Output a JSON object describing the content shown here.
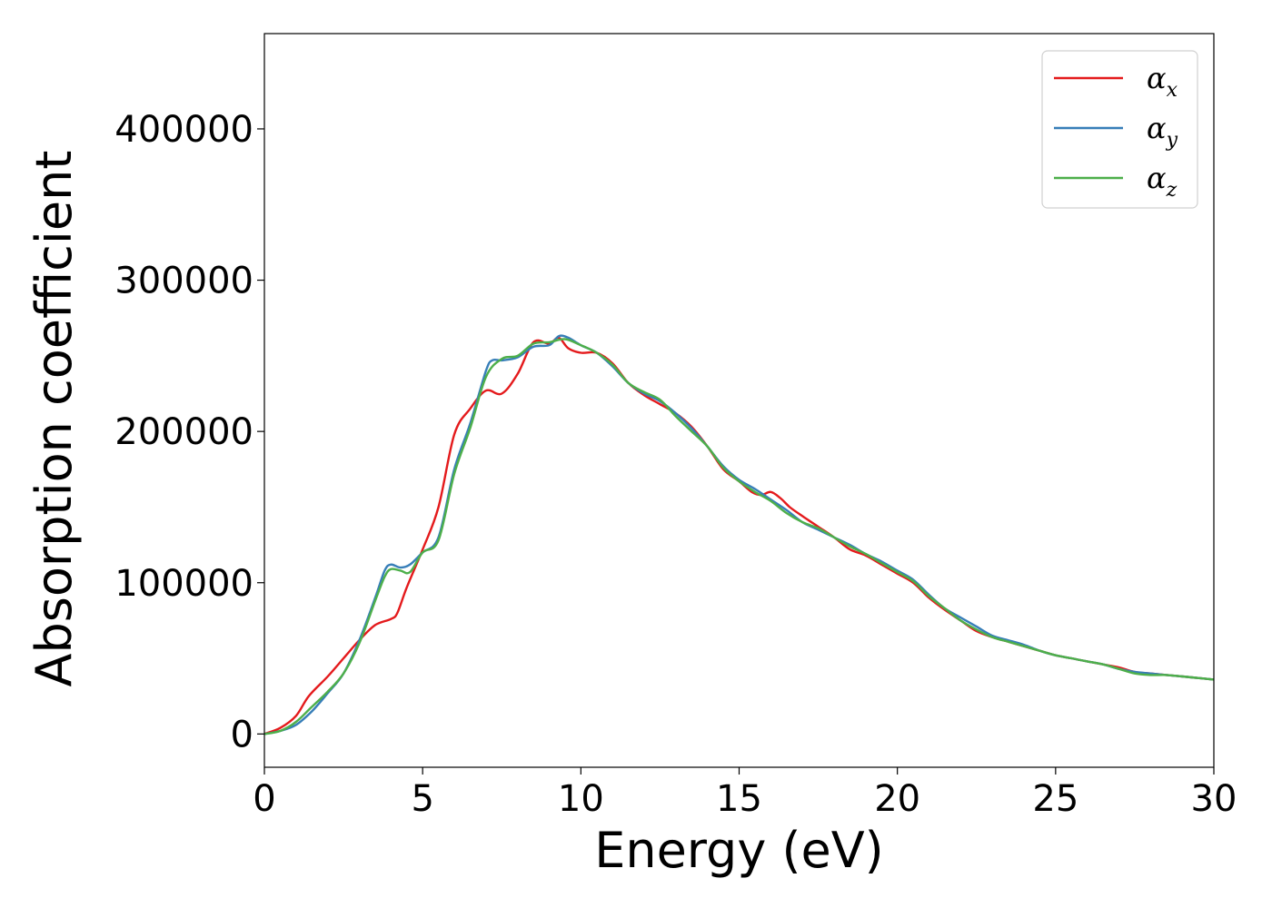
{
  "chart_data": {
    "type": "line",
    "title": "",
    "xlabel": "Energy (eV)",
    "ylabel": "Absorption coefficient",
    "xlim": [
      0,
      30
    ],
    "ylim": [
      -22000,
      463000
    ],
    "xticks": [
      0,
      5,
      10,
      15,
      20,
      25,
      30
    ],
    "yticks": [
      0,
      100000,
      200000,
      300000,
      400000
    ],
    "grid": false,
    "legend_position": "top-right",
    "series": [
      {
        "name": "α",
        "subscript": "x",
        "color": "#e41a1c",
        "x": [
          0,
          0.5,
          1.0,
          1.4,
          2.0,
          2.5,
          3.0,
          3.5,
          4.0,
          4.2,
          4.5,
          5.0,
          5.5,
          6.0,
          6.5,
          7.0,
          7.5,
          8.0,
          8.5,
          9.0,
          9.3,
          9.6,
          10.0,
          10.5,
          11.0,
          11.5,
          12.0,
          12.5,
          13.0,
          13.5,
          14.0,
          14.5,
          15.0,
          15.4,
          15.7,
          16.0,
          16.3,
          16.6,
          17.0,
          17.5,
          18.0,
          18.5,
          19.0,
          19.5,
          20.0,
          20.5,
          21.0,
          21.5,
          22.0,
          22.5,
          23.0,
          23.5,
          24.0,
          24.5,
          25.0,
          25.5,
          26.0,
          26.5,
          27.0,
          27.5,
          28.0,
          28.5,
          29.0,
          29.5,
          30.0
        ],
        "y": [
          0,
          4000,
          12000,
          25000,
          38000,
          50000,
          62000,
          72000,
          76000,
          80000,
          97000,
          122000,
          150000,
          198000,
          215000,
          227000,
          225000,
          238000,
          259000,
          258000,
          262000,
          255000,
          252000,
          252000,
          245000,
          232000,
          224000,
          218000,
          212000,
          203000,
          190000,
          175000,
          167000,
          160000,
          158000,
          160000,
          156000,
          150000,
          144000,
          137000,
          130000,
          122000,
          118000,
          112000,
          106000,
          100000,
          90000,
          82000,
          75000,
          68000,
          64000,
          61000,
          58000,
          55000,
          52000,
          50000,
          48000,
          46000,
          44000,
          41000,
          40000,
          39000,
          38000,
          37000,
          36000
        ]
      },
      {
        "name": "α",
        "subscript": "y",
        "color": "#377eb8",
        "x": [
          0,
          0.5,
          1.0,
          1.5,
          2.0,
          2.5,
          3.0,
          3.5,
          3.8,
          4.0,
          4.3,
          4.6,
          5.0,
          5.5,
          6.0,
          6.5,
          7.0,
          7.2,
          7.5,
          8.0,
          8.5,
          9.0,
          9.3,
          9.6,
          10.0,
          10.5,
          11.0,
          11.5,
          12.0,
          12.5,
          13.0,
          13.5,
          14.0,
          14.5,
          15.0,
          15.5,
          16.0,
          16.5,
          17.0,
          17.5,
          18.0,
          18.5,
          19.0,
          19.5,
          20.0,
          20.5,
          21.0,
          21.5,
          22.0,
          22.5,
          23.0,
          23.5,
          24.0,
          24.5,
          25.0,
          25.5,
          26.0,
          26.5,
          27.0,
          27.5,
          28.0,
          28.5,
          29.0,
          29.5,
          30.0
        ],
        "y": [
          0,
          2000,
          6000,
          15000,
          27000,
          40000,
          62000,
          90000,
          108000,
          112000,
          110000,
          112000,
          120000,
          130000,
          175000,
          205000,
          240000,
          247000,
          247000,
          249000,
          256000,
          257000,
          263000,
          262000,
          257000,
          252000,
          243000,
          232000,
          225000,
          220000,
          212000,
          202000,
          190000,
          177000,
          168000,
          162000,
          155000,
          148000,
          140000,
          135000,
          130000,
          125000,
          119000,
          114000,
          108000,
          102000,
          92000,
          83000,
          77000,
          71000,
          65000,
          62000,
          59000,
          55000,
          52000,
          50000,
          48000,
          46000,
          43000,
          41000,
          40000,
          39000,
          38000,
          37000,
          36000
        ]
      },
      {
        "name": "α",
        "subscript": "z",
        "color": "#4daf4a",
        "x": [
          0,
          0.5,
          1.0,
          1.5,
          2.0,
          2.5,
          3.0,
          3.5,
          3.8,
          4.0,
          4.3,
          4.6,
          5.0,
          5.5,
          6.0,
          6.5,
          7.0,
          7.5,
          8.0,
          8.5,
          9.0,
          9.5,
          10.0,
          10.5,
          11.0,
          11.5,
          12.0,
          12.5,
          13.0,
          13.5,
          14.0,
          14.5,
          15.0,
          15.5,
          16.0,
          16.5,
          17.0,
          17.5,
          18.0,
          18.5,
          19.0,
          19.5,
          20.0,
          20.5,
          21.0,
          21.5,
          22.0,
          22.5,
          23.0,
          23.5,
          24.0,
          24.5,
          25.0,
          25.5,
          26.0,
          26.5,
          27.0,
          27.5,
          28.0,
          28.5,
          29.0,
          29.5,
          30.0
        ],
        "y": [
          0,
          2000,
          8000,
          18000,
          28000,
          40000,
          60000,
          88000,
          104000,
          109000,
          108000,
          107000,
          120000,
          128000,
          172000,
          202000,
          236000,
          248000,
          250000,
          258000,
          259000,
          261000,
          257000,
          252000,
          244000,
          232000,
          226000,
          221000,
          210000,
          200000,
          190000,
          176000,
          167000,
          160000,
          154000,
          146000,
          140000,
          136000,
          130000,
          124000,
          119000,
          113000,
          107000,
          101000,
          91000,
          83000,
          75000,
          69000,
          64000,
          61000,
          58000,
          55000,
          52000,
          50000,
          48000,
          46000,
          43000,
          40000,
          39000,
          39000,
          38000,
          37000,
          36000
        ]
      }
    ]
  }
}
